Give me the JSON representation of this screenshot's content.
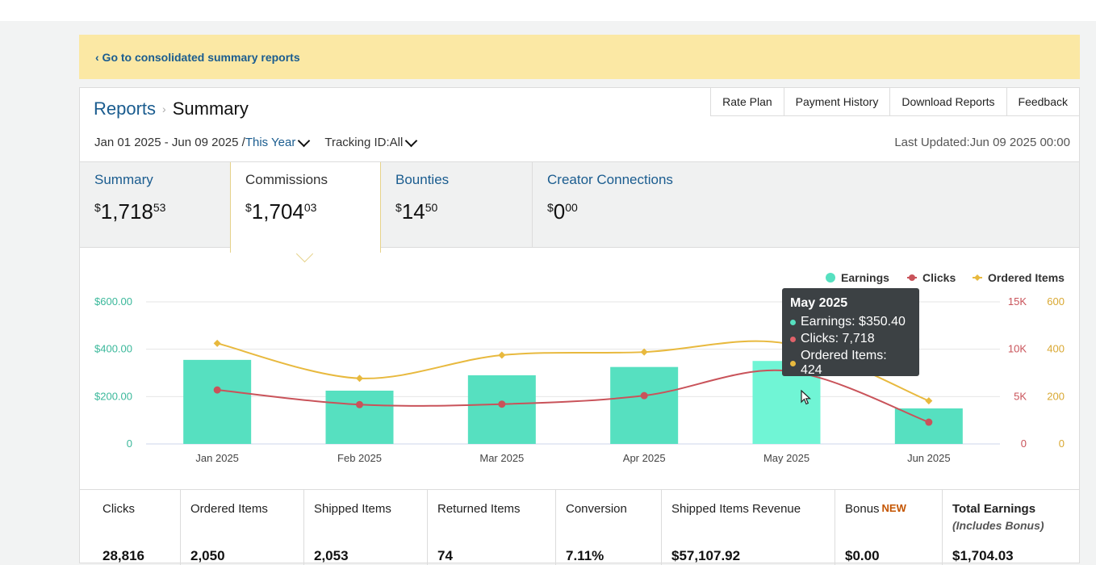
{
  "banner": {
    "link": "‹ Go to consolidated summary reports"
  },
  "breadcrumb": {
    "parent": "Reports",
    "sep": "›",
    "current": "Summary"
  },
  "top_buttons": [
    "Rate Plan",
    "Payment History",
    "Download Reports",
    "Feedback"
  ],
  "filters": {
    "date_range": "Jan 01 2025 - Jun 09 2025 /",
    "period": "This Year",
    "tracking": "Tracking ID:All"
  },
  "last_updated": "Last Updated:Jun 09 2025 00:00",
  "tabs": [
    {
      "label": "Summary",
      "currency": "$",
      "value": "1,718",
      "cents": "53"
    },
    {
      "label": "Commissions",
      "currency": "$",
      "value": "1,704",
      "cents": "03",
      "active": true
    },
    {
      "label": "Bounties",
      "currency": "$",
      "value": "14",
      "cents": "50"
    },
    {
      "label": "Creator Connections",
      "currency": "$",
      "value": "0",
      "cents": "00"
    }
  ],
  "chart_data": {
    "type": "bar",
    "categories": [
      "Jan 2025",
      "Feb 2025",
      "Mar 2025",
      "Apr 2025",
      "May 2025",
      "Jun 2025"
    ],
    "series": [
      {
        "name": "Earnings",
        "type": "bar",
        "axis": "left",
        "color": "#56e0c0",
        "values": [
          355,
          225,
          290,
          325,
          350.4,
          150
        ]
      },
      {
        "name": "Clicks",
        "type": "line",
        "axis": "right1",
        "color": "#c9535a",
        "values": [
          5700,
          4150,
          4200,
          5100,
          7718,
          2300
        ]
      },
      {
        "name": "Ordered Items",
        "type": "line",
        "axis": "right2",
        "color": "#e8b93e",
        "values": [
          425,
          277,
          375,
          388,
          424,
          182
        ]
      }
    ],
    "left_axis": {
      "ticks": [
        "0",
        "$200.00",
        "$400.00",
        "$600.00"
      ],
      "range": [
        0,
        600
      ]
    },
    "right_axis_1": {
      "ticks": [
        "0",
        "5K",
        "10K",
        "15K"
      ],
      "range": [
        0,
        15000
      ]
    },
    "right_axis_2": {
      "ticks": [
        "0",
        "200",
        "400",
        "600"
      ],
      "range": [
        0,
        600
      ]
    },
    "legend_position": "top-right",
    "highlight_index": 4
  },
  "tooltip": {
    "title": "May 2025",
    "rows": [
      "Earnings: $350.40",
      "Clicks: 7,718",
      "Ordered Items: 424"
    ]
  },
  "stats": [
    {
      "label": "Clicks",
      "value": "28,816"
    },
    {
      "label": "Ordered Items",
      "value": "2,050"
    },
    {
      "label": "Shipped Items",
      "value": "2,053"
    },
    {
      "label": "Returned Items",
      "value": "74"
    },
    {
      "label": "Conversion",
      "value": "7.11%"
    },
    {
      "label": "Shipped Items Revenue",
      "value": "$57,107.92"
    },
    {
      "label": "Bonus",
      "tag": "NEW",
      "value": "$0.00"
    },
    {
      "label": "Total Earnings",
      "sub": "(Includes Bonus)",
      "value": "$1,704.03"
    }
  ]
}
